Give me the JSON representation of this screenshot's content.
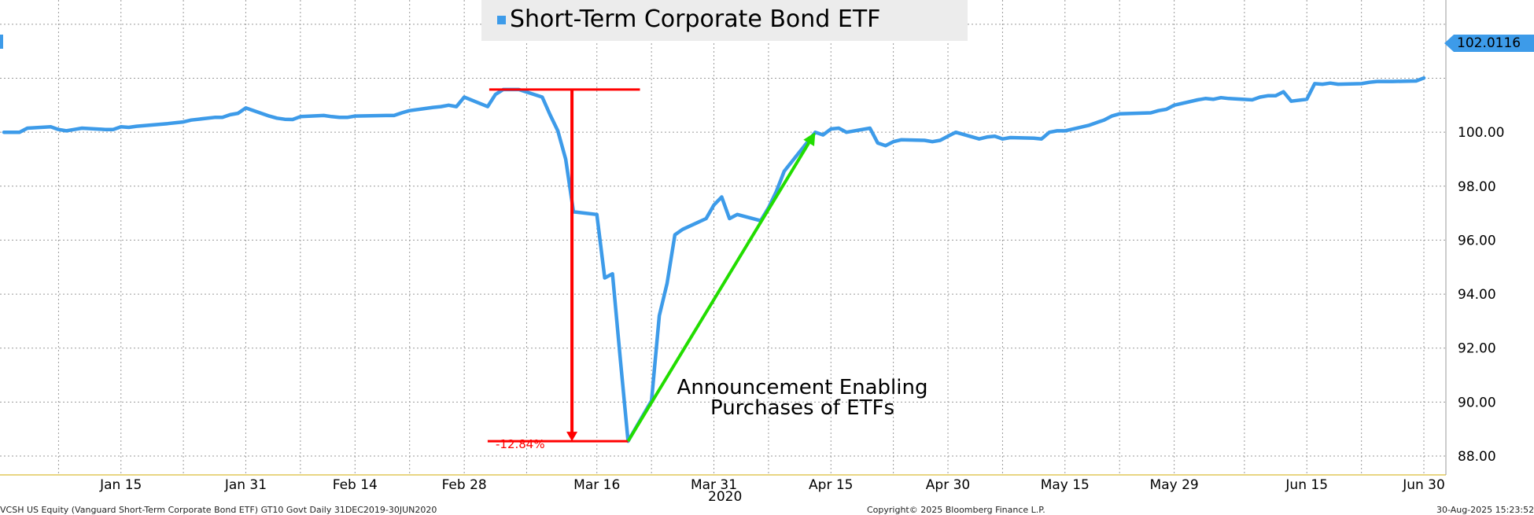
{
  "chart_data": {
    "type": "line",
    "title": "",
    "xlabel": "",
    "ylabel": "",
    "legend": {
      "position": "top-center",
      "label": "Short-Term Corporate Bond ETF",
      "color": "#3d9be9"
    },
    "grid": true,
    "ylim": [
      87.3,
      104.9
    ],
    "y_ticks": [
      "88.00",
      "90.00",
      "92.00",
      "94.00",
      "96.00",
      "98.00",
      "100.00"
    ],
    "x_ticks": [
      {
        "label": "Jan 15",
        "date": "2020-01-15"
      },
      {
        "label": "Jan 31",
        "date": "2020-01-31"
      },
      {
        "label": "Feb 14",
        "date": "2020-02-14"
      },
      {
        "label": "Feb 28",
        "date": "2020-02-28"
      },
      {
        "label": "Mar 16",
        "date": "2020-03-16"
      },
      {
        "label": "Mar 31",
        "date": "2020-03-31"
      },
      {
        "label": "Apr 15",
        "date": "2020-04-15"
      },
      {
        "label": "Apr 30",
        "date": "2020-04-30"
      },
      {
        "label": "May 15",
        "date": "2020-05-15"
      },
      {
        "label": "May 29",
        "date": "2020-05-29"
      },
      {
        "label": "Jun 15",
        "date": "2020-06-15"
      },
      {
        "label": "Jun 30",
        "date": "2020-06-30"
      }
    ],
    "year_label": "2020",
    "last_value_tag": "102.0116",
    "series": [
      {
        "name": "Short-Term Corporate Bond ETF",
        "color": "#3d9be9",
        "points": [
          [
            "2019-12-31",
            100.0
          ],
          [
            "2020-01-02",
            100.0
          ],
          [
            "2020-01-03",
            100.15
          ],
          [
            "2020-01-06",
            100.2
          ],
          [
            "2020-01-07",
            100.1
          ],
          [
            "2020-01-08",
            100.05
          ],
          [
            "2020-01-09",
            100.1
          ],
          [
            "2020-01-10",
            100.15
          ],
          [
            "2020-01-13",
            100.1
          ],
          [
            "2020-01-14",
            100.1
          ],
          [
            "2020-01-15",
            100.2
          ],
          [
            "2020-01-16",
            100.18
          ],
          [
            "2020-01-17",
            100.22
          ],
          [
            "2020-01-21",
            100.32
          ],
          [
            "2020-01-22",
            100.35
          ],
          [
            "2020-01-23",
            100.38
          ],
          [
            "2020-01-24",
            100.45
          ],
          [
            "2020-01-27",
            100.55
          ],
          [
            "2020-01-28",
            100.55
          ],
          [
            "2020-01-29",
            100.65
          ],
          [
            "2020-01-30",
            100.7
          ],
          [
            "2020-01-31",
            100.9
          ],
          [
            "2020-02-03",
            100.6
          ],
          [
            "2020-02-04",
            100.52
          ],
          [
            "2020-02-05",
            100.48
          ],
          [
            "2020-02-06",
            100.47
          ],
          [
            "2020-02-07",
            100.58
          ],
          [
            "2020-02-10",
            100.62
          ],
          [
            "2020-02-11",
            100.58
          ],
          [
            "2020-02-12",
            100.55
          ],
          [
            "2020-02-13",
            100.55
          ],
          [
            "2020-02-14",
            100.6
          ],
          [
            "2020-02-18",
            100.62
          ],
          [
            "2020-02-19",
            100.62
          ],
          [
            "2020-02-20",
            100.72
          ],
          [
            "2020-02-21",
            100.8
          ],
          [
            "2020-02-24",
            100.92
          ],
          [
            "2020-02-25",
            100.95
          ],
          [
            "2020-02-26",
            101.0
          ],
          [
            "2020-02-27",
            100.95
          ],
          [
            "2020-02-28",
            101.3
          ],
          [
            "2020-03-02",
            100.95
          ],
          [
            "2020-03-03",
            101.4
          ],
          [
            "2020-03-04",
            101.58
          ],
          [
            "2020-03-05",
            101.58
          ],
          [
            "2020-03-06",
            101.58
          ],
          [
            "2020-03-09",
            101.3
          ],
          [
            "2020-03-10",
            100.65
          ],
          [
            "2020-03-11",
            100.05
          ],
          [
            "2020-03-12",
            99.0
          ],
          [
            "2020-03-13",
            97.05
          ],
          [
            "2020-03-16",
            96.95
          ],
          [
            "2020-03-17",
            94.6
          ],
          [
            "2020-03-18",
            94.75
          ],
          [
            "2020-03-19",
            91.6
          ],
          [
            "2020-03-20",
            88.55
          ],
          [
            "2020-03-23",
            90.05
          ],
          [
            "2020-03-24",
            93.2
          ],
          [
            "2020-03-25",
            94.4
          ],
          [
            "2020-03-26",
            96.2
          ],
          [
            "2020-03-27",
            96.4
          ],
          [
            "2020-03-30",
            96.8
          ],
          [
            "2020-03-31",
            97.3
          ],
          [
            "2020-04-01",
            97.6
          ],
          [
            "2020-04-02",
            96.8
          ],
          [
            "2020-04-03",
            96.95
          ],
          [
            "2020-04-06",
            96.72
          ],
          [
            "2020-04-07",
            97.2
          ],
          [
            "2020-04-08",
            97.8
          ],
          [
            "2020-04-09",
            98.55
          ],
          [
            "2020-04-13",
            100.0
          ],
          [
            "2020-04-14",
            99.9
          ],
          [
            "2020-04-15",
            100.12
          ],
          [
            "2020-04-16",
            100.15
          ],
          [
            "2020-04-17",
            100.0
          ],
          [
            "2020-04-20",
            100.15
          ],
          [
            "2020-04-21",
            99.6
          ],
          [
            "2020-04-22",
            99.5
          ],
          [
            "2020-04-23",
            99.65
          ],
          [
            "2020-04-24",
            99.72
          ],
          [
            "2020-04-27",
            99.7
          ],
          [
            "2020-04-28",
            99.65
          ],
          [
            "2020-04-29",
            99.7
          ],
          [
            "2020-04-30",
            99.85
          ],
          [
            "2020-05-01",
            100.0
          ],
          [
            "2020-05-04",
            99.75
          ],
          [
            "2020-05-05",
            99.82
          ],
          [
            "2020-05-06",
            99.85
          ],
          [
            "2020-05-07",
            99.75
          ],
          [
            "2020-05-08",
            99.8
          ],
          [
            "2020-05-11",
            99.78
          ],
          [
            "2020-05-12",
            99.75
          ],
          [
            "2020-05-13",
            100.0
          ],
          [
            "2020-05-14",
            100.05
          ],
          [
            "2020-05-15",
            100.05
          ],
          [
            "2020-05-18",
            100.25
          ],
          [
            "2020-05-19",
            100.35
          ],
          [
            "2020-05-20",
            100.45
          ],
          [
            "2020-05-21",
            100.6
          ],
          [
            "2020-05-22",
            100.68
          ],
          [
            "2020-05-26",
            100.72
          ],
          [
            "2020-05-27",
            100.8
          ],
          [
            "2020-05-28",
            100.85
          ],
          [
            "2020-05-29",
            101.0
          ],
          [
            "2020-06-01",
            101.2
          ],
          [
            "2020-06-02",
            101.25
          ],
          [
            "2020-06-03",
            101.22
          ],
          [
            "2020-06-04",
            101.28
          ],
          [
            "2020-06-05",
            101.25
          ],
          [
            "2020-06-08",
            101.2
          ],
          [
            "2020-06-09",
            101.3
          ],
          [
            "2020-06-10",
            101.35
          ],
          [
            "2020-06-11",
            101.35
          ],
          [
            "2020-06-12",
            101.5
          ],
          [
            "2020-06-13",
            101.15
          ],
          [
            "2020-06-15",
            101.22
          ],
          [
            "2020-06-16",
            101.8
          ],
          [
            "2020-06-17",
            101.78
          ],
          [
            "2020-06-18",
            101.82
          ],
          [
            "2020-06-19",
            101.78
          ],
          [
            "2020-06-22",
            101.8
          ],
          [
            "2020-06-23",
            101.85
          ],
          [
            "2020-06-24",
            101.88
          ],
          [
            "2020-06-25",
            101.88
          ],
          [
            "2020-06-26",
            101.88
          ],
          [
            "2020-06-29",
            101.9
          ],
          [
            "2020-06-30",
            102.01
          ]
        ]
      }
    ],
    "annotations": {
      "drawdown": {
        "from_date": "2020-03-04",
        "to_date": "2020-03-20",
        "high": 101.58,
        "low": 88.55,
        "label": "-12.84%",
        "color": "#ff0000"
      },
      "recovery_arrow": {
        "from_date": "2020-03-20",
        "from_value": 88.55,
        "to_date": "2020-04-13",
        "to_value": 100.0,
        "color": "#22dd00"
      },
      "text": [
        "Announcement Enabling",
        "Purchases of ETFs"
      ]
    }
  },
  "footer": {
    "left": "VCSH US Equity (Vanguard Short-Term Corporate Bond ETF) GT10  Govt  Daily 31DEC2019-30JUN2020",
    "center": "Copyright© 2025 Bloomberg Finance L.P.",
    "right": "30-Aug-2025 15:23:52"
  }
}
